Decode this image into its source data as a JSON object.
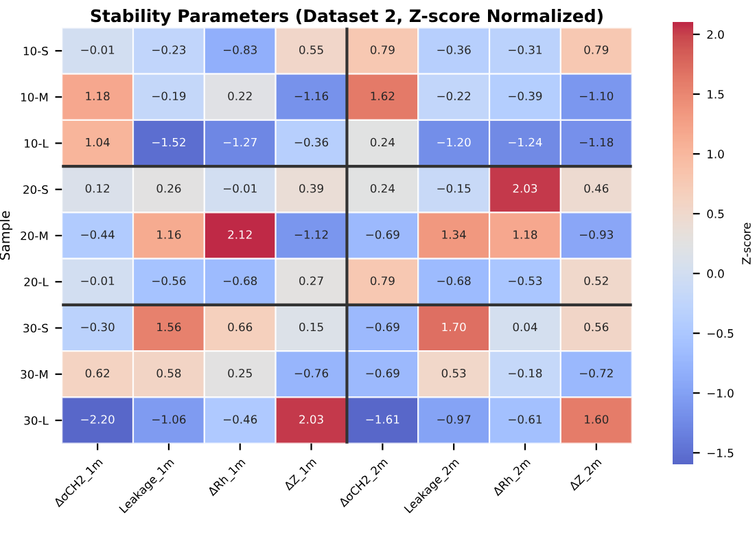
{
  "chart_data": {
    "type": "heatmap",
    "title": "Stability Parameters (Dataset 2, Z-score Normalized)",
    "ylabel": "Sample",
    "clabel": "Z-score",
    "categories": [
      "ΔσCH2_1m",
      "Leakage_1m",
      "ΔRh_1m",
      "ΔZ_1m",
      "ΔσCH2_2m",
      "Leakage_2m",
      "ΔRh_2m",
      "ΔZ_2m"
    ],
    "y_categories": [
      "10-S",
      "10-M",
      "10-L",
      "20-S",
      "20-M",
      "20-L",
      "30-S",
      "30-M",
      "30-L"
    ],
    "cells": [
      [
        -0.01,
        -0.23,
        -0.83,
        0.55,
        0.79,
        -0.36,
        -0.31,
        0.79
      ],
      [
        1.18,
        -0.19,
        0.22,
        -1.16,
        1.62,
        -0.22,
        -0.39,
        -1.1
      ],
      [
        1.04,
        -1.52,
        -1.27,
        -0.36,
        0.24,
        -1.2,
        -1.24,
        -1.18
      ],
      [
        0.12,
        0.26,
        -0.01,
        0.39,
        0.24,
        -0.15,
        2.03,
        0.46
      ],
      [
        -0.44,
        1.16,
        2.12,
        -1.12,
        -0.69,
        1.34,
        1.18,
        -0.93
      ],
      [
        -0.01,
        -0.56,
        -0.68,
        0.27,
        0.79,
        -0.68,
        -0.53,
        0.52
      ],
      [
        -0.3,
        1.56,
        0.66,
        0.15,
        -0.69,
        1.7,
        0.04,
        0.56
      ],
      [
        0.62,
        0.58,
        0.25,
        -0.76,
        -0.69,
        0.53,
        -0.18,
        -0.72
      ],
      [
        -2.2,
        -1.06,
        -0.46,
        2.03,
        -1.61,
        -0.97,
        -0.61,
        1.6
      ]
    ],
    "cell_labels": [
      [
        "−0.01",
        "−0.23",
        "−0.83",
        "0.55",
        "0.79",
        "−0.36",
        "−0.31",
        "0.79"
      ],
      [
        "1.18",
        "−0.19",
        "0.22",
        "−1.16",
        "1.62",
        "−0.22",
        "−0.39",
        "−1.10"
      ],
      [
        "1.04",
        "−1.52",
        "−1.27",
        "−0.36",
        "0.24",
        "−1.20",
        "−1.24",
        "−1.18"
      ],
      [
        "0.12",
        "0.26",
        "−0.01",
        "0.39",
        "0.24",
        "−0.15",
        "2.03",
        "0.46"
      ],
      [
        "−0.44",
        "1.16",
        "2.12",
        "−1.12",
        "−0.69",
        "1.34",
        "1.18",
        "−0.93"
      ],
      [
        "−0.01",
        "−0.56",
        "−0.68",
        "0.27",
        "0.79",
        "−0.68",
        "−0.53",
        "0.52"
      ],
      [
        "−0.30",
        "1.56",
        "0.66",
        "0.15",
        "−0.69",
        "1.70",
        "0.04",
        "0.56"
      ],
      [
        "0.62",
        "0.58",
        "0.25",
        "−0.76",
        "−0.69",
        "0.53",
        "−0.18",
        "−0.72"
      ],
      [
        "−2.20",
        "−1.06",
        "−0.46",
        "2.03",
        "−1.61",
        "−0.97",
        "−0.61",
        "1.60"
      ]
    ],
    "clim": [
      -1.6,
      2.1
    ],
    "cticks": [
      {
        "value": -1.5,
        "label": "−1.5"
      },
      {
        "value": -1.0,
        "label": "−1.0"
      },
      {
        "value": -0.5,
        "label": "−0.5"
      },
      {
        "value": 0.0,
        "label": "0.0"
      },
      {
        "value": 0.5,
        "label": "0.5"
      },
      {
        "value": 1.0,
        "label": "1.0"
      },
      {
        "value": 1.5,
        "label": "1.5"
      },
      {
        "value": 2.0,
        "label": "2.0"
      }
    ]
  }
}
